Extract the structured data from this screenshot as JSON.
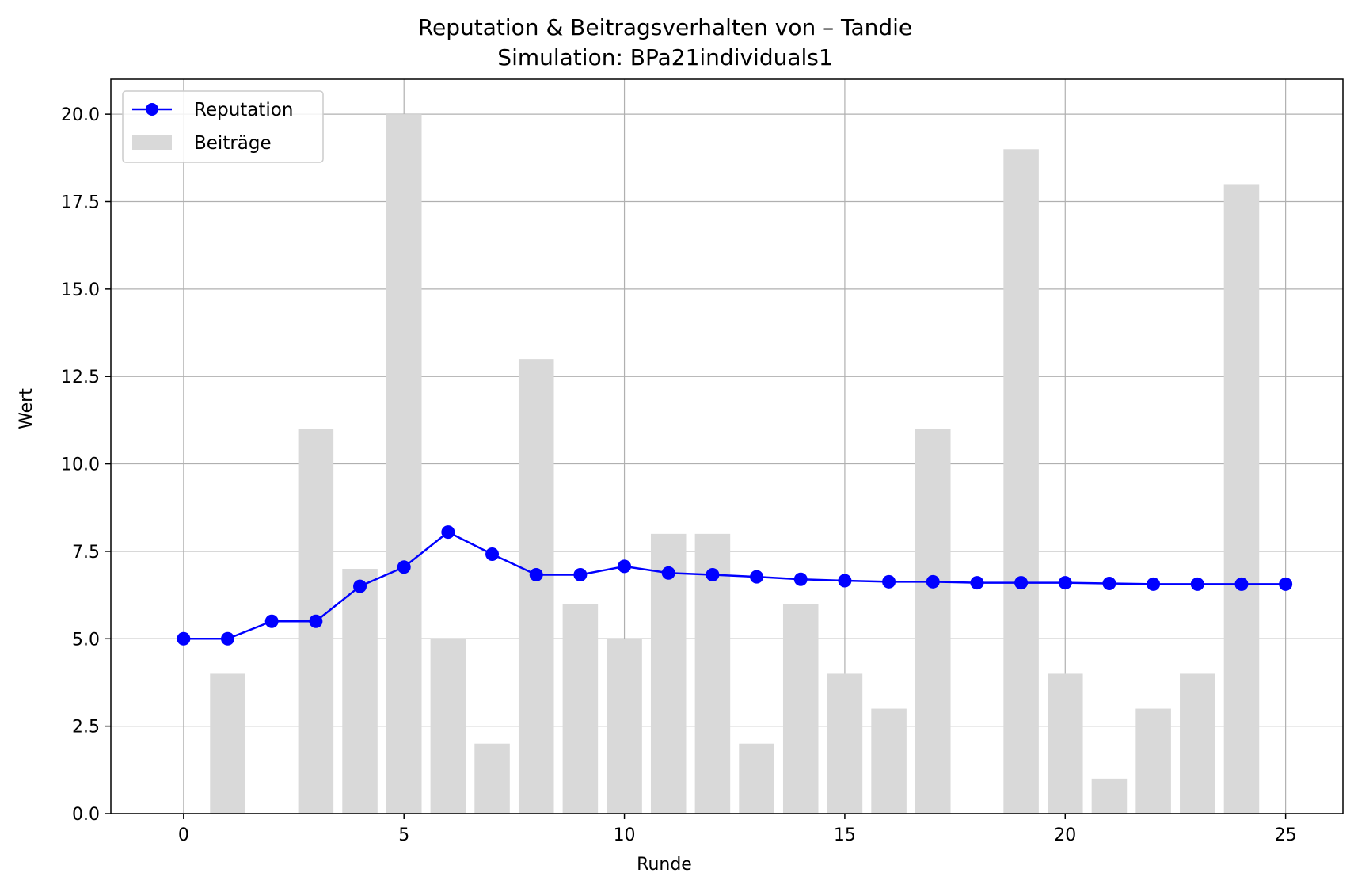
{
  "chart_data": {
    "type": "bar+line",
    "title": "Reputation & Beitragsverhalten von – Tandie",
    "subtitle": "Simulation: BPa21individuals1",
    "xlabel": "Runde",
    "ylabel": "Wert",
    "xlim": [
      -1.65,
      26.3
    ],
    "ylim": [
      0,
      21
    ],
    "x_ticks": [
      0,
      5,
      10,
      15,
      20,
      25
    ],
    "y_ticks": [
      0.0,
      2.5,
      5.0,
      7.5,
      10.0,
      12.5,
      15.0,
      17.5,
      20.0
    ],
    "y_tick_labels": [
      "0.0",
      "2.5",
      "5.0",
      "7.5",
      "10.0",
      "12.5",
      "15.0",
      "17.5",
      "20.0"
    ],
    "grid": true,
    "legend_position": "top-left",
    "series": [
      {
        "name": "Reputation",
        "kind": "line",
        "color": "#0000ff",
        "marker": "circle",
        "x": [
          0,
          1,
          2,
          3,
          4,
          5,
          6,
          7,
          8,
          9,
          10,
          11,
          12,
          13,
          14,
          15,
          16,
          17,
          18,
          19,
          20,
          21,
          22,
          23,
          24,
          25
        ],
        "values": [
          5.0,
          5.0,
          5.5,
          5.5,
          6.5,
          7.05,
          8.05,
          7.42,
          6.83,
          6.83,
          7.07,
          6.88,
          6.83,
          6.77,
          6.7,
          6.66,
          6.63,
          6.63,
          6.6,
          6.6,
          6.6,
          6.58,
          6.56,
          6.56,
          6.56,
          6.56
        ]
      },
      {
        "name": "Beiträge",
        "kind": "bar",
        "color": "#d9d9d9",
        "x": [
          1,
          2,
          3,
          4,
          5,
          6,
          7,
          8,
          9,
          10,
          11,
          12,
          13,
          14,
          15,
          16,
          17,
          18,
          19,
          20,
          21,
          22,
          23,
          24
        ],
        "values": [
          4,
          0,
          11,
          7,
          20,
          5,
          2,
          13,
          6,
          5,
          8,
          8,
          2,
          6,
          4,
          3,
          11,
          0,
          19,
          4,
          1,
          3,
          4,
          18
        ]
      }
    ]
  }
}
